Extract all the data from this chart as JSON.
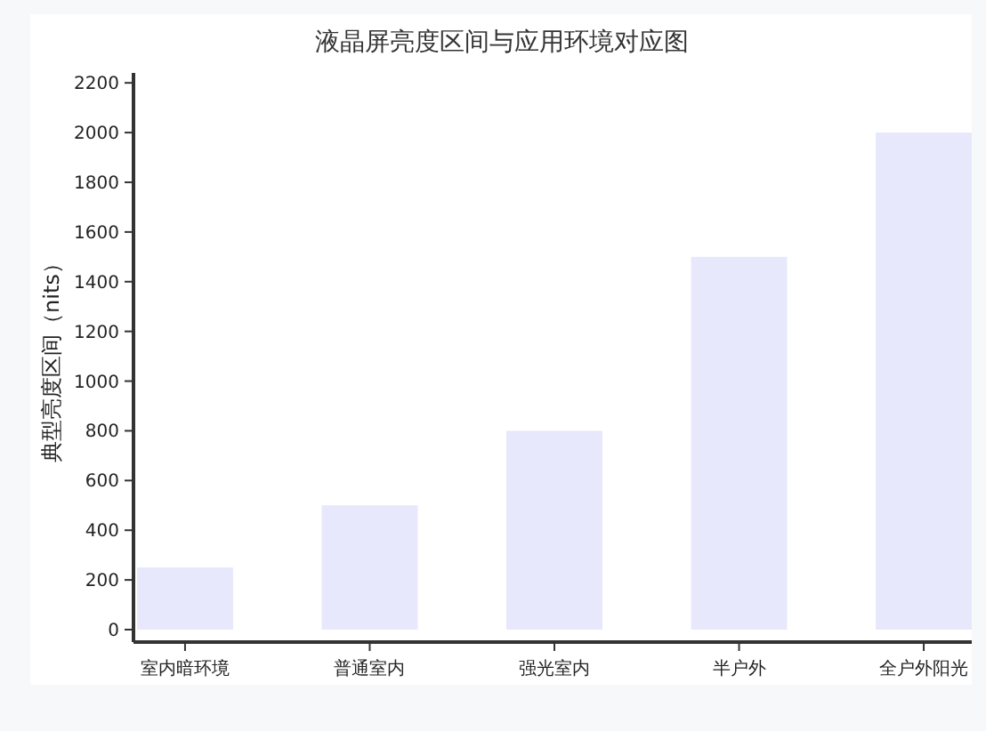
{
  "chart_data": {
    "type": "bar",
    "title": "液晶屏亮度区间与应用环境对应图",
    "ylabel": "典型亮度区间（nits）",
    "categories": [
      "室内暗环境",
      "普通室内",
      "强光室内",
      "半户外",
      "全户外阳光"
    ],
    "values": [
      250,
      500,
      800,
      1500,
      2000
    ],
    "color": "#e8e8fc",
    "ylim": [
      -50,
      2240
    ],
    "yticks": [
      0,
      200,
      400,
      600,
      800,
      1000,
      1200,
      1400,
      1600,
      1800,
      2000,
      2200
    ],
    "grid": false
  }
}
